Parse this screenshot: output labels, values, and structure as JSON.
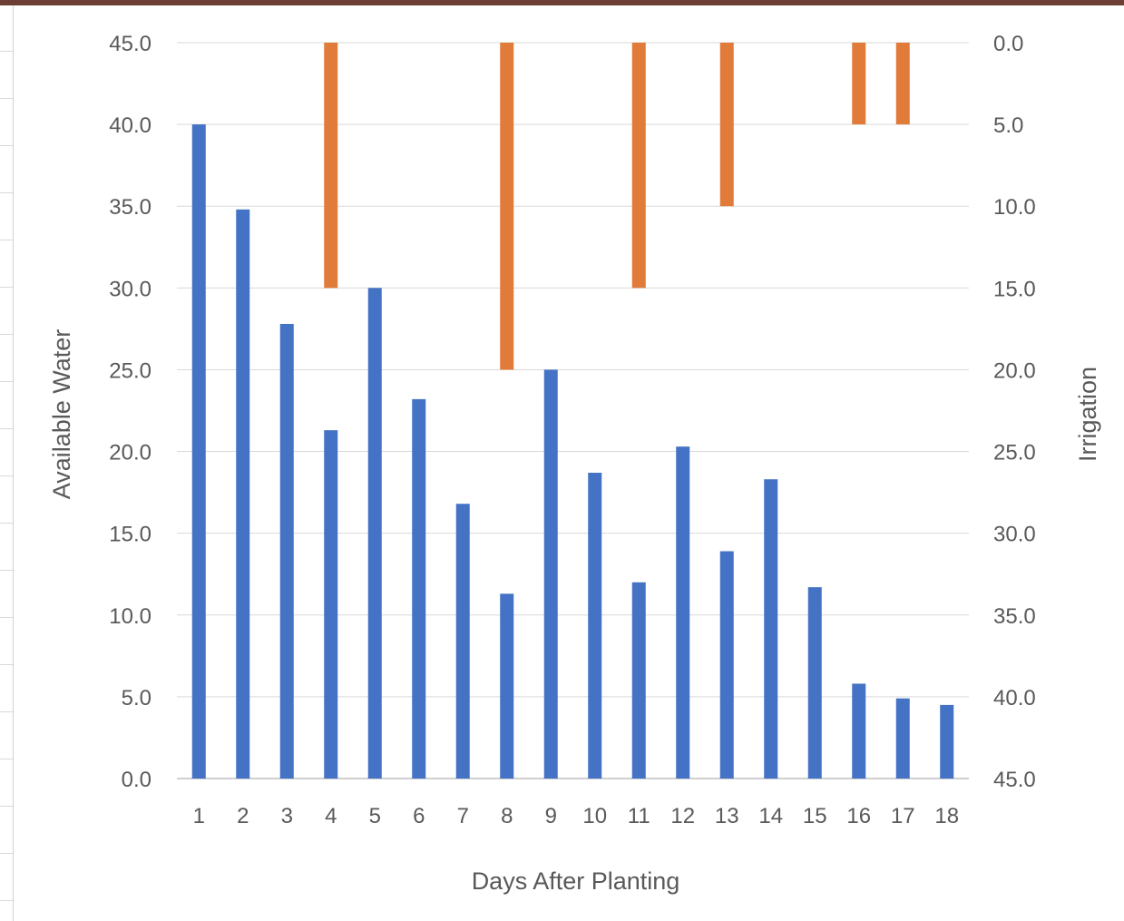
{
  "chart_data": {
    "type": "bar",
    "title": "",
    "xlabel": "Days After Planting",
    "ylabel": "Available Water",
    "y2label": "Irrigation",
    "categories": [
      "1",
      "2",
      "3",
      "4",
      "5",
      "6",
      "7",
      "8",
      "9",
      "10",
      "11",
      "12",
      "13",
      "14",
      "15",
      "16",
      "17",
      "18"
    ],
    "ylim": [
      0,
      45
    ],
    "y2lim": [
      0,
      45
    ],
    "y2_reversed": true,
    "yticks": [
      "0.0",
      "5.0",
      "10.0",
      "15.0",
      "20.0",
      "25.0",
      "30.0",
      "35.0",
      "40.0",
      "45.0"
    ],
    "y2ticks": [
      "0.0",
      "5.0",
      "10.0",
      "15.0",
      "20.0",
      "25.0",
      "30.0",
      "35.0",
      "40.0",
      "45.0"
    ],
    "grid": true,
    "series": [
      {
        "axis": "left",
        "color": "#4472c4",
        "values": [
          40.0,
          34.8,
          27.8,
          21.3,
          30.0,
          23.2,
          16.8,
          11.3,
          25.0,
          18.7,
          12.0,
          20.3,
          13.9,
          18.3,
          11.7,
          5.8,
          4.9,
          4.5
        ]
      },
      {
        "axis": "right",
        "color": "#e07b39",
        "values": [
          0,
          0,
          0,
          15.0,
          0,
          0,
          0,
          20.0,
          0,
          0,
          15.0,
          0,
          10.0,
          0,
          0,
          5.0,
          5.0,
          0
        ]
      }
    ]
  }
}
